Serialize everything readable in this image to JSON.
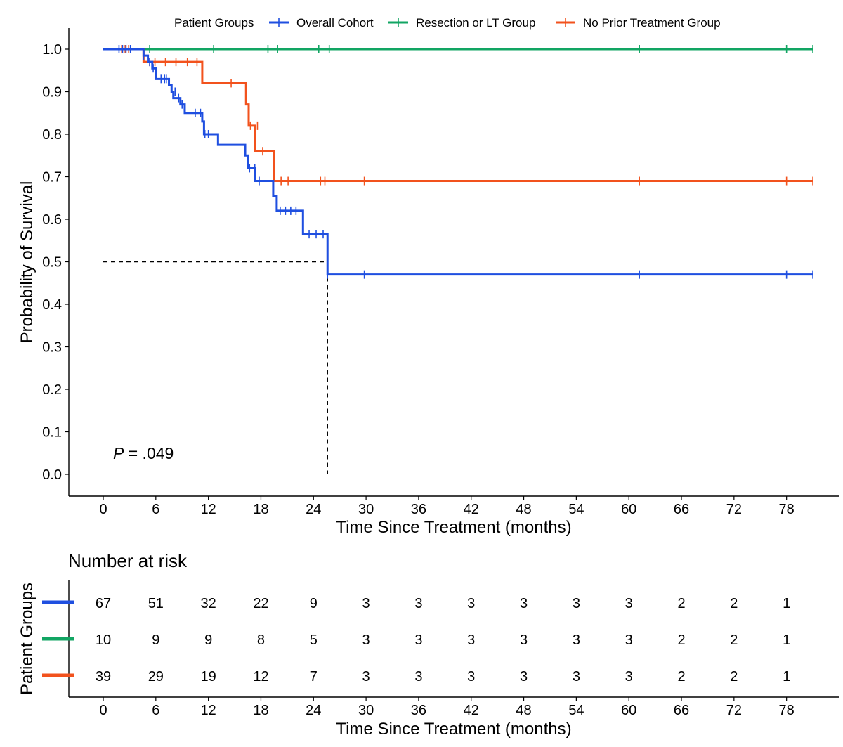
{
  "chart_data": {
    "type": "line",
    "subtype": "kaplan-meier",
    "legend": {
      "title": "Patient Groups",
      "position": "top"
    },
    "xlabel": "Time Since Treatment (months)",
    "ylabel": "Probability of Survival",
    "xlim": [
      0,
      83
    ],
    "ylim": [
      0,
      1
    ],
    "xticks": [
      0,
      6,
      12,
      18,
      24,
      30,
      36,
      42,
      48,
      54,
      60,
      66,
      72,
      78
    ],
    "yticks": [
      0.0,
      0.1,
      0.2,
      0.3,
      0.4,
      0.5,
      0.6,
      0.7,
      0.8,
      0.9,
      1.0
    ],
    "annotation": {
      "p_prefix": "P",
      "p_value": " = .049"
    },
    "median_line": {
      "survival": 0.5,
      "time": 25.6
    },
    "series": [
      {
        "name": "Overall Cohort",
        "color": "#1f4fe0",
        "steps": [
          [
            0,
            1.0
          ],
          [
            4.6,
            0.985
          ],
          [
            5.1,
            0.97
          ],
          [
            5.6,
            0.955
          ],
          [
            6.0,
            0.93
          ],
          [
            7.5,
            0.915
          ],
          [
            7.8,
            0.9
          ],
          [
            8.0,
            0.885
          ],
          [
            8.8,
            0.87
          ],
          [
            9.3,
            0.85
          ],
          [
            11.3,
            0.83
          ],
          [
            11.5,
            0.8
          ],
          [
            13.1,
            0.775
          ],
          [
            16.2,
            0.75
          ],
          [
            16.5,
            0.72
          ],
          [
            17.3,
            0.69
          ],
          [
            19.4,
            0.655
          ],
          [
            19.8,
            0.62
          ],
          [
            22.8,
            0.565
          ],
          [
            25.6,
            0.47
          ],
          [
            81,
            0.47
          ]
        ],
        "censor": [
          [
            1.8,
            1.0
          ],
          [
            2.2,
            1.0
          ],
          [
            2.6,
            1.0
          ],
          [
            3.1,
            1.0
          ],
          [
            4.6,
            0.985
          ],
          [
            5.3,
            0.97
          ],
          [
            5.7,
            0.955
          ],
          [
            6.6,
            0.93
          ],
          [
            7.0,
            0.93
          ],
          [
            7.2,
            0.93
          ],
          [
            8.2,
            0.9
          ],
          [
            8.6,
            0.885
          ],
          [
            9.0,
            0.87
          ],
          [
            10.5,
            0.85
          ],
          [
            11.1,
            0.85
          ],
          [
            11.6,
            0.8
          ],
          [
            12.0,
            0.8
          ],
          [
            16.7,
            0.72
          ],
          [
            17.3,
            0.72
          ],
          [
            17.8,
            0.69
          ],
          [
            20.2,
            0.62
          ],
          [
            20.8,
            0.62
          ],
          [
            21.4,
            0.62
          ],
          [
            22.0,
            0.62
          ],
          [
            23.5,
            0.565
          ],
          [
            24.3,
            0.565
          ],
          [
            25.1,
            0.565
          ],
          [
            25.6,
            0.47
          ],
          [
            29.8,
            0.47
          ],
          [
            61.2,
            0.47
          ],
          [
            78.0,
            0.47
          ],
          [
            81,
            0.47
          ]
        ],
        "at_risk": [
          67,
          51,
          32,
          22,
          9,
          3,
          3,
          3,
          3,
          3,
          3,
          2,
          2,
          1
        ]
      },
      {
        "name": "Resection or LT Group",
        "color": "#12a563",
        "steps": [
          [
            0,
            1.0
          ],
          [
            81,
            1.0
          ]
        ],
        "censor": [
          [
            5.3,
            1.0
          ],
          [
            12.6,
            1.0
          ],
          [
            18.8,
            1.0
          ],
          [
            19.9,
            1.0
          ],
          [
            24.6,
            1.0
          ],
          [
            25.8,
            1.0
          ],
          [
            61.2,
            1.0
          ],
          [
            78.0,
            1.0
          ],
          [
            81,
            1.0
          ]
        ],
        "at_risk": [
          10,
          9,
          9,
          8,
          5,
          3,
          3,
          3,
          3,
          3,
          3,
          2,
          2,
          1
        ]
      },
      {
        "name": "No Prior Treatment Group",
        "color": "#f2521d",
        "steps": [
          [
            0,
            1.0
          ],
          [
            4.6,
            0.97
          ],
          [
            11.3,
            0.92
          ],
          [
            16.3,
            0.87
          ],
          [
            16.6,
            0.82
          ],
          [
            17.3,
            0.76
          ],
          [
            19.5,
            0.69
          ],
          [
            81,
            0.69
          ]
        ],
        "censor": [
          [
            2.1,
            1.0
          ],
          [
            2.5,
            1.0
          ],
          [
            2.9,
            1.0
          ],
          [
            5.3,
            0.97
          ],
          [
            5.9,
            0.97
          ],
          [
            7.1,
            0.97
          ],
          [
            8.3,
            0.97
          ],
          [
            9.6,
            0.97
          ],
          [
            10.7,
            0.97
          ],
          [
            14.6,
            0.92
          ],
          [
            16.8,
            0.82
          ],
          [
            17.6,
            0.82
          ],
          [
            18.2,
            0.76
          ],
          [
            20.3,
            0.69
          ],
          [
            21.1,
            0.69
          ],
          [
            24.8,
            0.69
          ],
          [
            25.3,
            0.69
          ],
          [
            29.8,
            0.69
          ],
          [
            61.2,
            0.69
          ],
          [
            78.0,
            0.69
          ],
          [
            81,
            0.69
          ]
        ],
        "at_risk": [
          39,
          29,
          19,
          12,
          7,
          3,
          3,
          3,
          3,
          3,
          3,
          2,
          2,
          1
        ]
      }
    ],
    "risk_table": {
      "title": "Number at risk",
      "ylabel": "Patient Groups",
      "xlabel": "Time Since Treatment (months)"
    }
  }
}
